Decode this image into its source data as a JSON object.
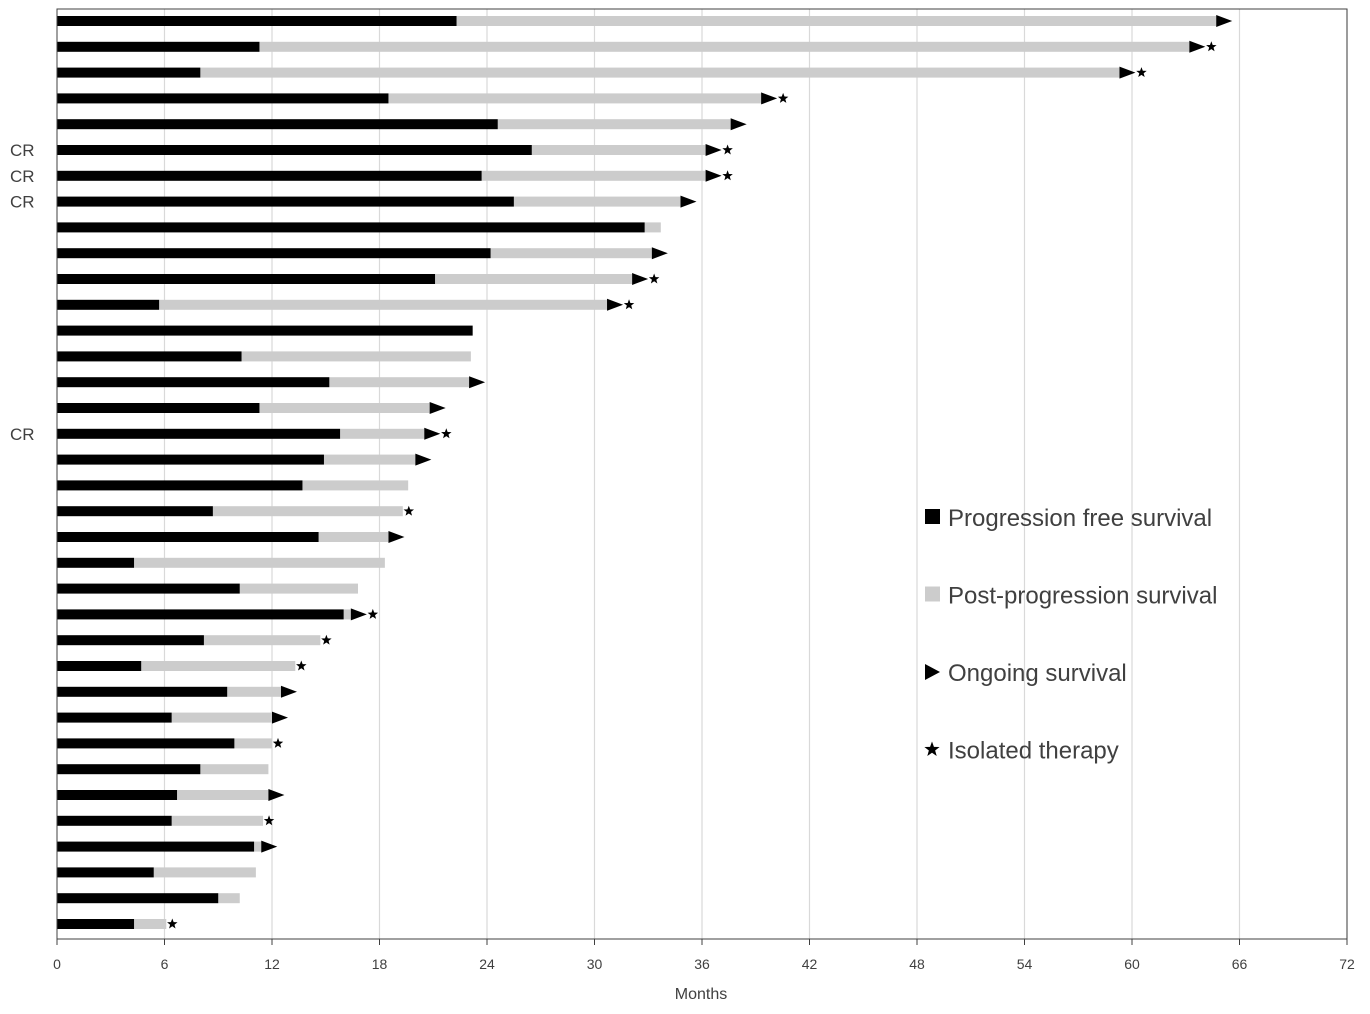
{
  "chart_data": {
    "type": "bar",
    "orientation": "horizontal",
    "stacked": true,
    "xlabel": "Months",
    "xlim": [
      0,
      72
    ],
    "xticks": [
      0,
      6,
      12,
      18,
      24,
      30,
      36,
      42,
      48,
      54,
      60,
      66,
      72
    ],
    "grid": "vertical",
    "legend_position": "right-middle",
    "legend": [
      {
        "key": "pfs",
        "label": "Progression free survival",
        "marker": "square",
        "color": "#000000"
      },
      {
        "key": "pps",
        "label": "Post-progression survival",
        "marker": "square",
        "color": "#cccccc"
      },
      {
        "key": "ongoing",
        "label": "Ongoing survival",
        "marker": "triangle-right",
        "color": "#000000"
      },
      {
        "key": "isolated",
        "label": "Isolated therapy",
        "marker": "star",
        "color": "#000000"
      }
    ],
    "colors": {
      "pfs": "#000000",
      "pps": "#cccccc",
      "grid": "#d9d9d9",
      "axis": "#404040"
    },
    "patients": [
      {
        "pfs": 22.3,
        "total": 64.7,
        "ongoing": true,
        "isolated": false,
        "label": ""
      },
      {
        "pfs": 11.3,
        "total": 63.2,
        "ongoing": true,
        "isolated": true,
        "label": ""
      },
      {
        "pfs": 8.0,
        "total": 59.3,
        "ongoing": true,
        "isolated": true,
        "label": ""
      },
      {
        "pfs": 18.5,
        "total": 39.3,
        "ongoing": true,
        "isolated": true,
        "label": ""
      },
      {
        "pfs": 24.6,
        "total": 37.6,
        "ongoing": true,
        "isolated": false,
        "label": ""
      },
      {
        "pfs": 26.5,
        "total": 36.2,
        "ongoing": true,
        "isolated": true,
        "label": "CR"
      },
      {
        "pfs": 23.7,
        "total": 36.2,
        "ongoing": true,
        "isolated": true,
        "label": "CR"
      },
      {
        "pfs": 25.5,
        "total": 34.8,
        "ongoing": true,
        "isolated": false,
        "label": "CR"
      },
      {
        "pfs": 32.8,
        "total": 33.7,
        "ongoing": false,
        "isolated": false,
        "label": ""
      },
      {
        "pfs": 24.2,
        "total": 33.2,
        "ongoing": true,
        "isolated": false,
        "label": ""
      },
      {
        "pfs": 21.1,
        "total": 32.1,
        "ongoing": true,
        "isolated": true,
        "label": ""
      },
      {
        "pfs": 5.7,
        "total": 30.7,
        "ongoing": true,
        "isolated": true,
        "label": ""
      },
      {
        "pfs": 23.2,
        "total": 23.2,
        "ongoing": false,
        "isolated": false,
        "label": ""
      },
      {
        "pfs": 10.3,
        "total": 23.1,
        "ongoing": false,
        "isolated": false,
        "label": ""
      },
      {
        "pfs": 15.2,
        "total": 23.0,
        "ongoing": true,
        "isolated": false,
        "label": ""
      },
      {
        "pfs": 11.3,
        "total": 20.8,
        "ongoing": true,
        "isolated": false,
        "label": ""
      },
      {
        "pfs": 15.8,
        "total": 20.5,
        "ongoing": true,
        "isolated": true,
        "label": "CR"
      },
      {
        "pfs": 14.9,
        "total": 20.0,
        "ongoing": true,
        "isolated": false,
        "label": ""
      },
      {
        "pfs": 13.7,
        "total": 19.6,
        "ongoing": false,
        "isolated": false,
        "label": ""
      },
      {
        "pfs": 8.7,
        "total": 19.3,
        "ongoing": false,
        "isolated": true,
        "label": ""
      },
      {
        "pfs": 14.6,
        "total": 18.5,
        "ongoing": true,
        "isolated": false,
        "label": ""
      },
      {
        "pfs": 4.3,
        "total": 18.3,
        "ongoing": false,
        "isolated": false,
        "label": ""
      },
      {
        "pfs": 10.2,
        "total": 16.8,
        "ongoing": false,
        "isolated": false,
        "label": ""
      },
      {
        "pfs": 16.0,
        "total": 16.4,
        "ongoing": true,
        "isolated": true,
        "label": ""
      },
      {
        "pfs": 8.2,
        "total": 14.7,
        "ongoing": false,
        "isolated": true,
        "label": ""
      },
      {
        "pfs": 4.7,
        "total": 13.3,
        "ongoing": false,
        "isolated": true,
        "label": ""
      },
      {
        "pfs": 9.5,
        "total": 12.5,
        "ongoing": true,
        "isolated": false,
        "label": ""
      },
      {
        "pfs": 6.4,
        "total": 12.0,
        "ongoing": true,
        "isolated": false,
        "label": ""
      },
      {
        "pfs": 9.9,
        "total": 12.0,
        "ongoing": false,
        "isolated": true,
        "label": ""
      },
      {
        "pfs": 8.0,
        "total": 11.8,
        "ongoing": false,
        "isolated": false,
        "label": ""
      },
      {
        "pfs": 6.7,
        "total": 11.8,
        "ongoing": true,
        "isolated": false,
        "label": ""
      },
      {
        "pfs": 6.4,
        "total": 11.5,
        "ongoing": false,
        "isolated": true,
        "label": ""
      },
      {
        "pfs": 11.0,
        "total": 11.4,
        "ongoing": true,
        "isolated": false,
        "label": ""
      },
      {
        "pfs": 5.4,
        "total": 11.1,
        "ongoing": false,
        "isolated": false,
        "label": ""
      },
      {
        "pfs": 9.0,
        "total": 10.2,
        "ongoing": false,
        "isolated": false,
        "label": ""
      },
      {
        "pfs": 4.3,
        "total": 6.1,
        "ongoing": false,
        "isolated": true,
        "label": ""
      }
    ]
  }
}
